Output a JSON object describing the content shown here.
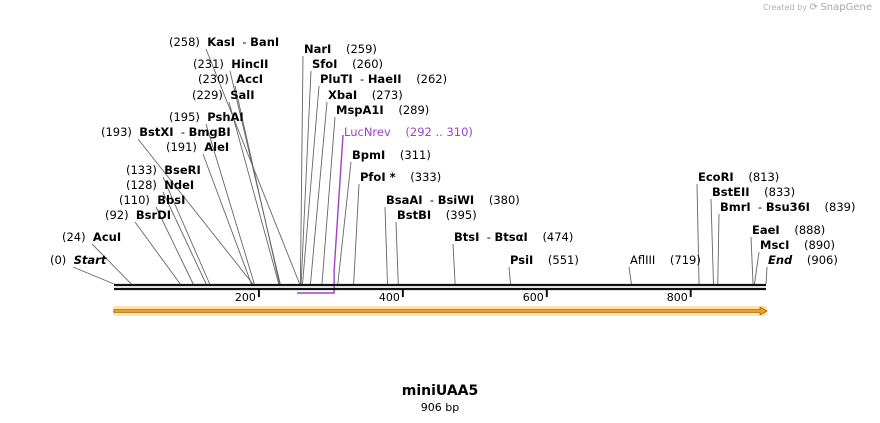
{
  "brand": {
    "created_by": "Created by",
    "name": "SnapGene"
  },
  "title": "miniUAA5",
  "subtitle": "906 bp",
  "axis": {
    "length": 906,
    "ticks": [
      "200",
      "400",
      "600",
      "800"
    ]
  },
  "features": [
    {
      "name": "KasI",
      "name2": "BanI",
      "site": 258,
      "pos_text": "(258)",
      "pos_side": "left"
    },
    {
      "name": "NarI",
      "site": 259,
      "pos_text": "(259)",
      "pos_side": "right"
    },
    {
      "name": "HincII",
      "site": 231,
      "pos_text": "(231)",
      "pos_side": "left"
    },
    {
      "name": "SfoI",
      "site": 260,
      "pos_text": "(260)",
      "pos_side": "right"
    },
    {
      "name": "AccI",
      "site": 230,
      "pos_text": "(230)",
      "pos_side": "left"
    },
    {
      "name": "PluTI",
      "name2": "HaeII",
      "site": 262,
      "pos_text": "(262)",
      "pos_side": "right"
    },
    {
      "name": "SalI",
      "site": 229,
      "pos_text": "(229)",
      "pos_side": "left"
    },
    {
      "name": "XbaI",
      "site": 273,
      "pos_text": "(273)",
      "pos_side": "right"
    },
    {
      "name": "MspA1I",
      "site": 289,
      "pos_text": "(289)",
      "pos_side": "right"
    },
    {
      "name": "PshAI",
      "site": 195,
      "pos_text": "(195)",
      "pos_side": "left"
    },
    {
      "name": "LucNrev",
      "site": 292,
      "pos_text": "(292 .. 310)",
      "pos_side": "right",
      "primer": true
    },
    {
      "name": "BstXI",
      "name2": "BmgBI",
      "site": 193,
      "pos_text": "(193)",
      "pos_side": "left"
    },
    {
      "name": "AleI",
      "site": 191,
      "pos_text": "(191)",
      "pos_side": "left"
    },
    {
      "name": "BpmI",
      "site": 311,
      "pos_text": "(311)",
      "pos_side": "right"
    },
    {
      "name": "BseRI",
      "site": 133,
      "pos_text": "(133)",
      "pos_side": "left"
    },
    {
      "name": "PfoI *",
      "site": 333,
      "pos_text": "(333)",
      "pos_side": "right"
    },
    {
      "name": "NdeI",
      "site": 128,
      "pos_text": "(128)",
      "pos_side": "left"
    },
    {
      "name": "EcoRI",
      "site": 813,
      "pos_text": "(813)",
      "pos_side": "right"
    },
    {
      "name": "BstEII",
      "site": 833,
      "pos_text": "(833)",
      "pos_side": "right"
    },
    {
      "name": "BbsI",
      "site": 110,
      "pos_text": "(110)",
      "pos_side": "left"
    },
    {
      "name": "BsaAI",
      "name2": "BsiWI",
      "site": 380,
      "pos_text": "(380)",
      "pos_side": "right"
    },
    {
      "name": "BsrDI",
      "site": 92,
      "pos_text": "(92)",
      "pos_side": "left"
    },
    {
      "name": "BstBI",
      "site": 395,
      "pos_text": "(395)",
      "pos_side": "right"
    },
    {
      "name": "BmrI",
      "name2": "Bsu36I",
      "site": 839,
      "pos_text": "(839)",
      "pos_side": "right"
    },
    {
      "name": "EaeI",
      "site": 888,
      "pos_text": "(888)",
      "pos_side": "right"
    },
    {
      "name": "AcuI",
      "site": 24,
      "pos_text": "(24)",
      "pos_side": "left"
    },
    {
      "name": "BtsI",
      "name2": "BtsαI",
      "site": 474,
      "pos_text": "(474)",
      "pos_side": "right"
    },
    {
      "name": "MscI",
      "site": 890,
      "pos_text": "(890)",
      "pos_side": "right"
    },
    {
      "name": "Start",
      "site": 0,
      "pos_text": "(0)",
      "pos_side": "left",
      "italic": true
    },
    {
      "name": "PsiI",
      "site": 551,
      "pos_text": "(551)",
      "pos_side": "right"
    },
    {
      "name": "AflIII",
      "site": 719,
      "pos_text": "(719)",
      "pos_side": "right",
      "plain": true
    },
    {
      "name": "End",
      "site": 906,
      "pos_text": "(906)",
      "pos_side": "right",
      "italic": true
    }
  ],
  "colors": {
    "primer": "#a040c8",
    "arrow_fill": "#f0a020",
    "arrow_glow": "#fbe3b0",
    "line": "#666666"
  }
}
